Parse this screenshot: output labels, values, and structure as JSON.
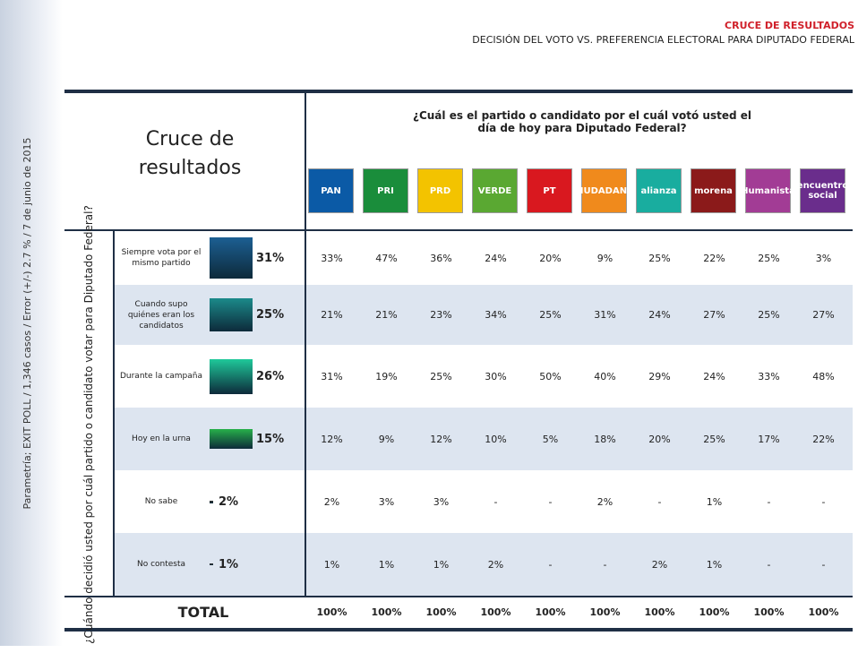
{
  "sidebar": "Parametría; EXIT POLL / 1,346 casos / Error (+/-) 2.7 % / 7 de junio de 2015",
  "header": {
    "kicker": "CRUCE DE RESULTADOS",
    "title": "DECISIÓN DEL VOTO VS. PREFERENCIA ELECTORAL PARA DIPUTADO FEDERAL"
  },
  "table": {
    "corner": "Cruce de resultados",
    "column_question": "¿Cuál es el partido o candidato por el cuál votó usted el día de hoy para Diputado Federal?",
    "row_question": "¿Cuándo decidió usted por cuál partido o candidato votar para Diputado Federal?",
    "parties": [
      {
        "label": "PAN",
        "color": "#0b5aa6"
      },
      {
        "label": "PRI",
        "color": "#1a8d3b"
      },
      {
        "label": "PRD",
        "color": "#f3c300"
      },
      {
        "label": "VERDE",
        "color": "#5aa832"
      },
      {
        "label": "PT",
        "color": "#d9181f"
      },
      {
        "label": "CIUDADANO",
        "color": "#f08a1c"
      },
      {
        "label": "alianza",
        "color": "#19ad9f"
      },
      {
        "label": "morena",
        "color": "#8b1a1a"
      },
      {
        "label": "Humanista",
        "color": "#a23c95"
      },
      {
        "label": "encuentro social",
        "color": "#6a2d8c"
      }
    ],
    "rows": [
      {
        "label": "Siempre vota por el mismo partido",
        "share": "31%",
        "color": "#1c5f93",
        "cells": [
          "33%",
          "47%",
          "36%",
          "24%",
          "20%",
          "9%",
          "25%",
          "22%",
          "25%",
          "3%"
        ]
      },
      {
        "label": "Cuando supo quiénes eran los candidatos",
        "share": "25%",
        "color": "#1b8a8a",
        "cells": [
          "21%",
          "21%",
          "23%",
          "34%",
          "25%",
          "31%",
          "24%",
          "27%",
          "25%",
          "27%"
        ]
      },
      {
        "label": "Durante la campaña",
        "share": "26%",
        "color": "#1fc99a",
        "cells": [
          "31%",
          "19%",
          "25%",
          "30%",
          "50%",
          "40%",
          "29%",
          "24%",
          "33%",
          "48%"
        ]
      },
      {
        "label": "Hoy en la urna",
        "share": "15%",
        "color": "#27b04a",
        "cells": [
          "12%",
          "9%",
          "12%",
          "10%",
          "5%",
          "18%",
          "20%",
          "25%",
          "17%",
          "22%"
        ]
      },
      {
        "label": "No sabe",
        "share": "2%",
        "color": "#333333",
        "cells": [
          "2%",
          "3%",
          "3%",
          "-",
          "-",
          "2%",
          "-",
          "1%",
          "-",
          "-"
        ]
      },
      {
        "label": "No contesta",
        "share": "1%",
        "color": "#333333",
        "cells": [
          "1%",
          "1%",
          "1%",
          "2%",
          "-",
          "-",
          "2%",
          "1%",
          "-",
          "-"
        ]
      }
    ],
    "total": {
      "label": "TOTAL",
      "cells": [
        "100%",
        "100%",
        "100%",
        "100%",
        "100%",
        "100%",
        "100%",
        "100%",
        "100%",
        "100%"
      ]
    }
  }
}
